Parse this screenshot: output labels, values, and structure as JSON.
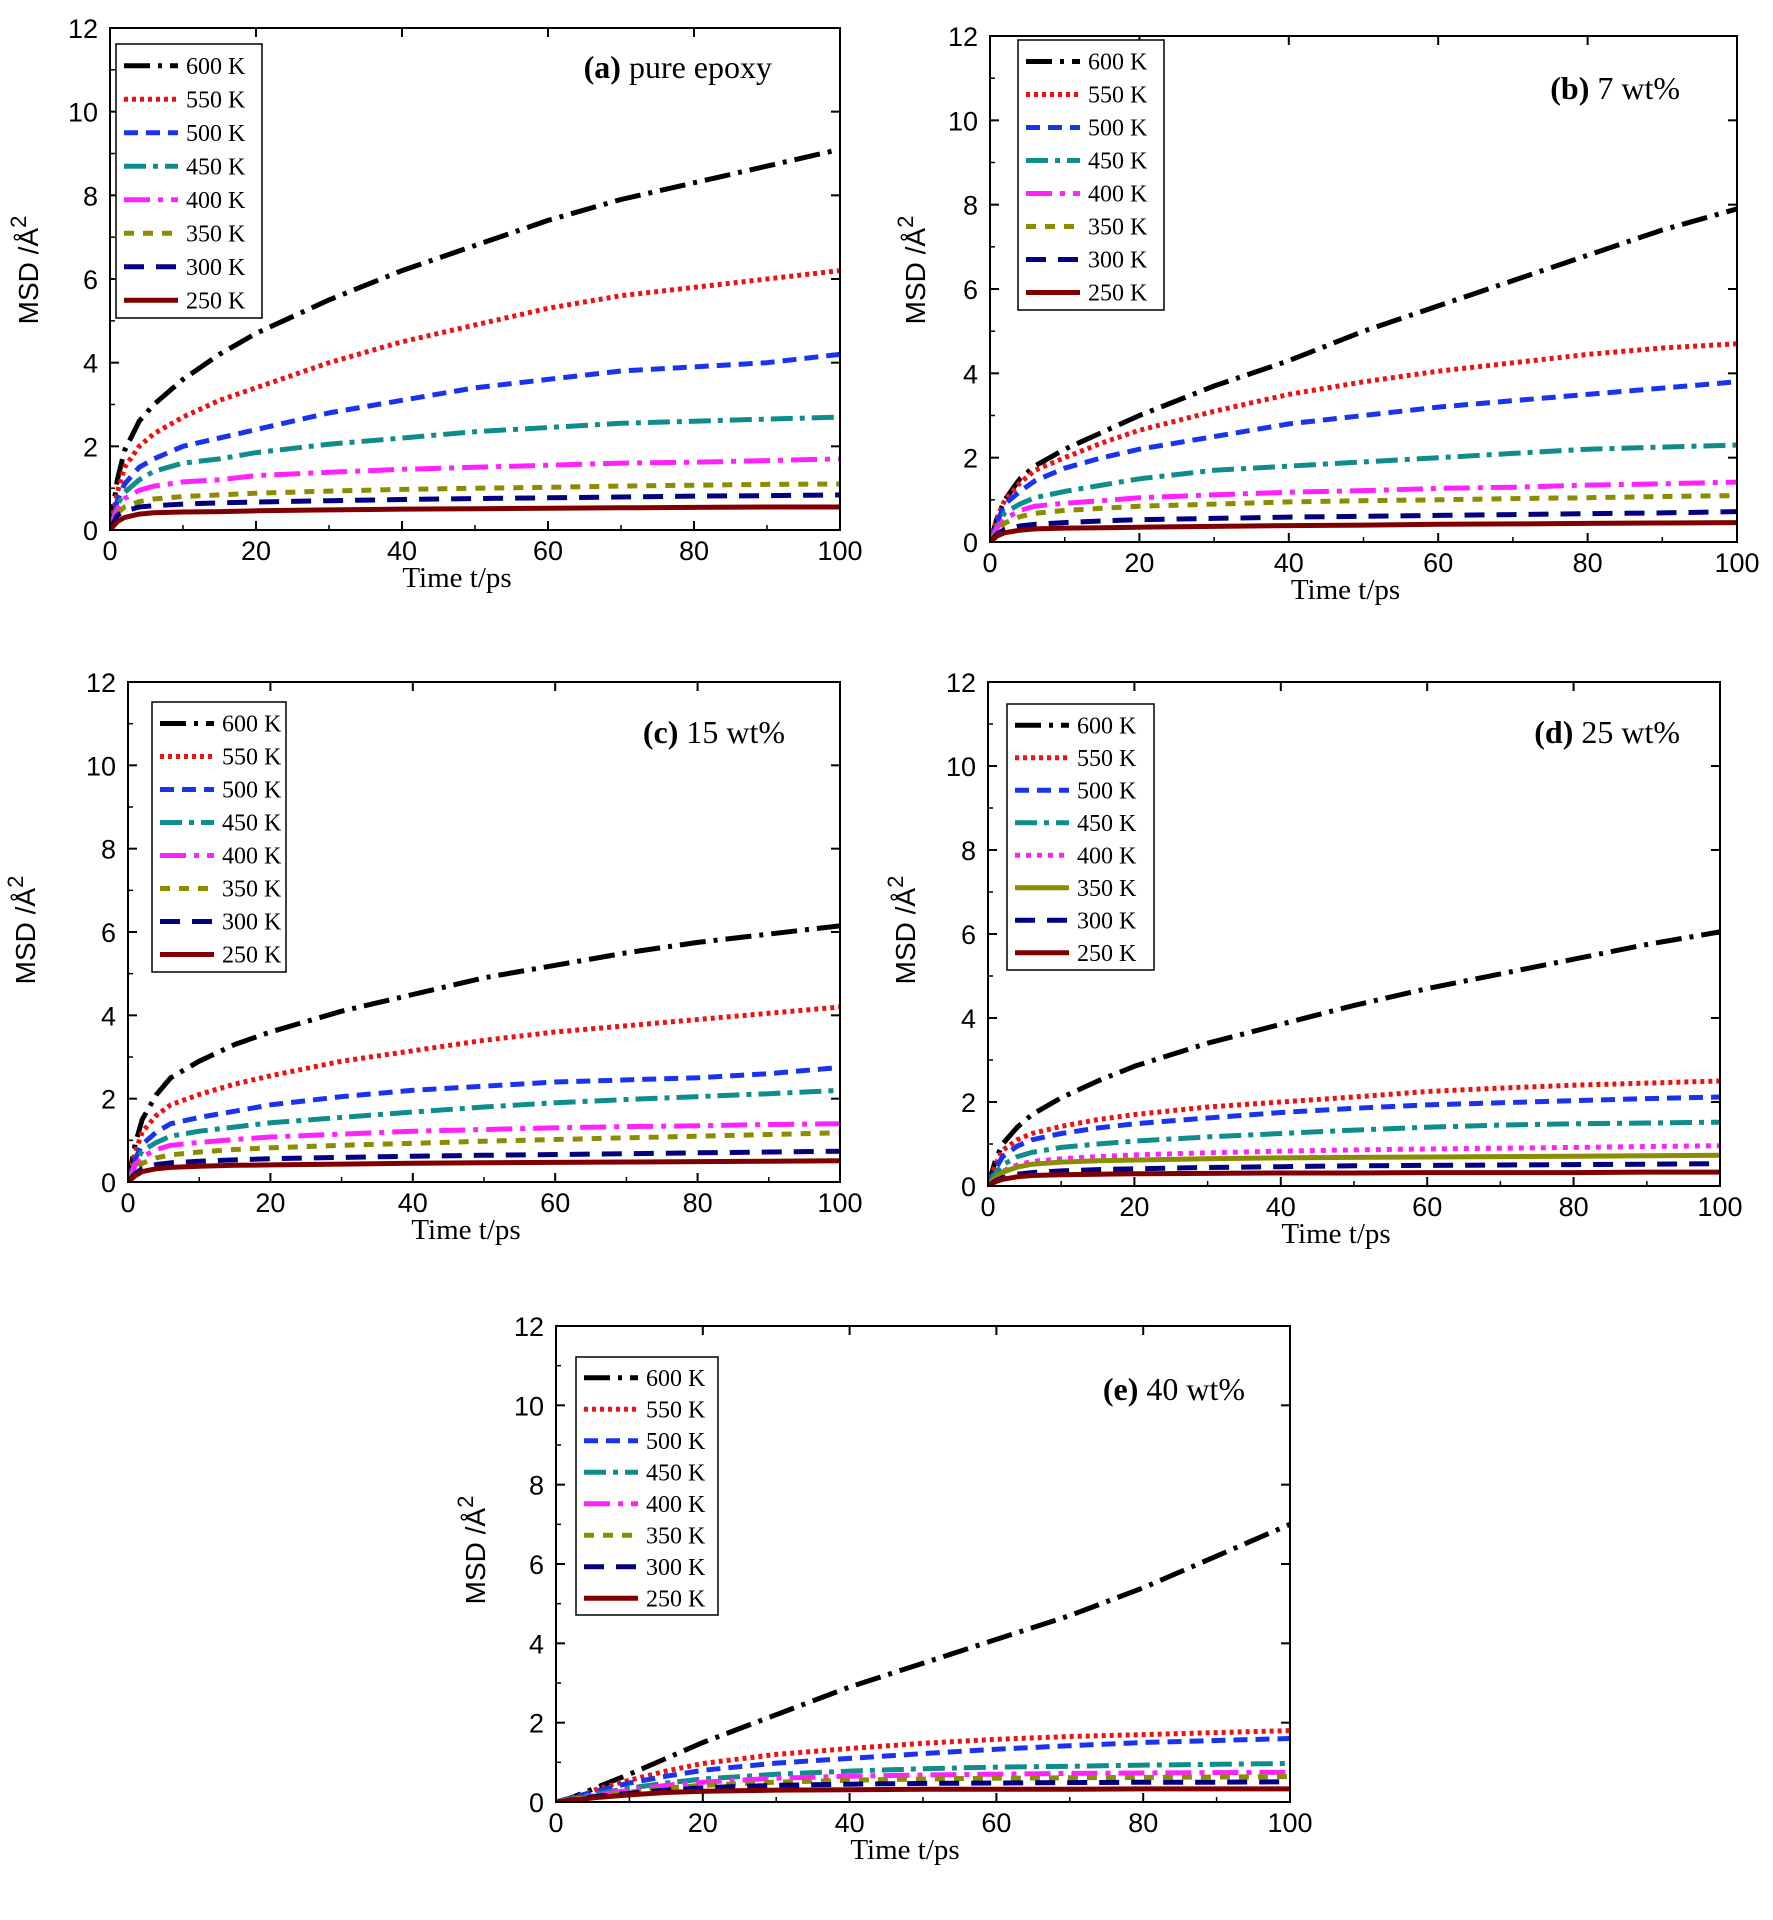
{
  "colors": {
    "600 K": "#000000",
    "550 K": "#ee1111",
    "500 K": "#1a33ee",
    "450 K": "#0f8c8c",
    "400 K": "#ff22ff",
    "350 K": "#8c8c00",
    "300 K": "#000080",
    "250 K": "#800000"
  },
  "chart_data": [
    {
      "type": "line",
      "panel": "(a)",
      "title_bold": "(a)",
      "title_rest": " pure epoxy",
      "xlabel": "Time t/ps",
      "ylabel": "MSD /Å",
      "ylabel_sup": "2",
      "xlim": [
        0,
        100
      ],
      "ylim": [
        0,
        12
      ],
      "xticks": [
        "0",
        "20",
        "40",
        "60",
        "80",
        "100"
      ],
      "yticks": [
        "0",
        "2",
        "4",
        "6",
        "8",
        "10",
        "12"
      ],
      "x": [
        0,
        1,
        2,
        4,
        6,
        10,
        15,
        20,
        30,
        40,
        50,
        60,
        70,
        80,
        90,
        100
      ],
      "series": [
        {
          "name": "600 K",
          "style": "dashdot",
          "values": [
            0,
            1.2,
            1.9,
            2.6,
            3.0,
            3.6,
            4.2,
            4.7,
            5.5,
            6.2,
            6.8,
            7.4,
            7.9,
            8.3,
            8.7,
            9.1
          ]
        },
        {
          "name": "550 K",
          "style": "dot",
          "values": [
            0,
            0.9,
            1.5,
            2.0,
            2.3,
            2.7,
            3.1,
            3.4,
            4.0,
            4.5,
            4.9,
            5.3,
            5.6,
            5.8,
            6.0,
            6.2
          ]
        },
        {
          "name": "500 K",
          "style": "dash",
          "values": [
            0,
            0.7,
            1.1,
            1.5,
            1.7,
            2.0,
            2.2,
            2.4,
            2.8,
            3.1,
            3.4,
            3.6,
            3.8,
            3.9,
            4.0,
            4.2
          ]
        },
        {
          "name": "450 K",
          "style": "dashdot2",
          "values": [
            0,
            0.6,
            0.9,
            1.2,
            1.4,
            1.6,
            1.7,
            1.85,
            2.05,
            2.2,
            2.35,
            2.45,
            2.55,
            2.6,
            2.65,
            2.7
          ]
        },
        {
          "name": "400 K",
          "style": "longdashdot",
          "values": [
            0,
            0.5,
            0.75,
            0.95,
            1.05,
            1.15,
            1.2,
            1.3,
            1.38,
            1.45,
            1.5,
            1.55,
            1.6,
            1.62,
            1.66,
            1.7
          ]
        },
        {
          "name": "350 K",
          "style": "sdash",
          "values": [
            0,
            0.4,
            0.55,
            0.68,
            0.74,
            0.8,
            0.84,
            0.88,
            0.93,
            0.97,
            1.0,
            1.02,
            1.05,
            1.07,
            1.09,
            1.1
          ]
        },
        {
          "name": "300 K",
          "style": "ldash",
          "values": [
            0,
            0.35,
            0.45,
            0.55,
            0.58,
            0.62,
            0.65,
            0.67,
            0.7,
            0.73,
            0.75,
            0.77,
            0.79,
            0.81,
            0.82,
            0.84
          ]
        },
        {
          "name": "250 K",
          "style": "solid",
          "values": [
            0,
            0.2,
            0.3,
            0.38,
            0.41,
            0.43,
            0.44,
            0.46,
            0.48,
            0.5,
            0.51,
            0.52,
            0.53,
            0.54,
            0.55,
            0.55
          ]
        }
      ]
    },
    {
      "type": "line",
      "panel": "(b)",
      "title_bold": "(b)",
      "title_rest": " 7 wt%",
      "xlabel": "Time t/ps",
      "ylabel": "MSD /Å",
      "ylabel_sup": "2",
      "xlim": [
        0,
        100
      ],
      "ylim": [
        0,
        12
      ],
      "xticks": [
        "0",
        "20",
        "40",
        "60",
        "80",
        "100"
      ],
      "yticks": [
        "0",
        "2",
        "4",
        "6",
        "8",
        "10",
        "12"
      ],
      "x": [
        0,
        1,
        2,
        4,
        6,
        10,
        15,
        20,
        30,
        40,
        50,
        60,
        70,
        80,
        90,
        100
      ],
      "series": [
        {
          "name": "600 K",
          "style": "dashdot",
          "values": [
            0,
            0.6,
            1.0,
            1.5,
            1.8,
            2.2,
            2.6,
            3.0,
            3.7,
            4.3,
            5.0,
            5.6,
            6.2,
            6.8,
            7.4,
            7.9
          ]
        },
        {
          "name": "550 K",
          "style": "dot",
          "values": [
            0,
            0.6,
            1.0,
            1.4,
            1.7,
            2.0,
            2.35,
            2.65,
            3.1,
            3.5,
            3.8,
            4.05,
            4.25,
            4.45,
            4.6,
            4.7
          ]
        },
        {
          "name": "500 K",
          "style": "dash",
          "values": [
            0,
            0.5,
            0.9,
            1.2,
            1.45,
            1.75,
            2.0,
            2.2,
            2.5,
            2.8,
            3.0,
            3.2,
            3.35,
            3.5,
            3.65,
            3.8
          ]
        },
        {
          "name": "450 K",
          "style": "dashdot2",
          "values": [
            0,
            0.4,
            0.7,
            0.9,
            1.05,
            1.2,
            1.35,
            1.5,
            1.7,
            1.8,
            1.9,
            2.0,
            2.1,
            2.2,
            2.25,
            2.3
          ]
        },
        {
          "name": "400 K",
          "style": "longdashdot",
          "values": [
            0,
            0.35,
            0.55,
            0.75,
            0.85,
            0.92,
            0.98,
            1.05,
            1.12,
            1.18,
            1.22,
            1.27,
            1.3,
            1.35,
            1.38,
            1.42
          ]
        },
        {
          "name": "350 K",
          "style": "sdash",
          "values": [
            0,
            0.3,
            0.45,
            0.6,
            0.68,
            0.75,
            0.8,
            0.85,
            0.9,
            0.95,
            0.98,
            1.0,
            1.03,
            1.05,
            1.08,
            1.1
          ]
        },
        {
          "name": "300 K",
          "style": "ldash",
          "values": [
            0,
            0.2,
            0.3,
            0.38,
            0.42,
            0.46,
            0.5,
            0.53,
            0.56,
            0.59,
            0.61,
            0.63,
            0.65,
            0.67,
            0.69,
            0.72
          ]
        },
        {
          "name": "250 K",
          "style": "solid",
          "values": [
            0,
            0.15,
            0.22,
            0.28,
            0.31,
            0.33,
            0.34,
            0.35,
            0.37,
            0.39,
            0.4,
            0.42,
            0.43,
            0.44,
            0.45,
            0.46
          ]
        }
      ]
    },
    {
      "type": "line",
      "panel": "(c)",
      "title_bold": "(c)",
      "title_rest": "  15 wt%",
      "xlabel": "Time t/ps",
      "ylabel": "MSD /Å",
      "ylabel_sup": "2",
      "xlim": [
        0,
        100
      ],
      "ylim": [
        0,
        12
      ],
      "xticks": [
        "0",
        "20",
        "40",
        "60",
        "80",
        "100"
      ],
      "yticks": [
        "0",
        "2",
        "4",
        "6",
        "8",
        "10",
        "12"
      ],
      "x": [
        0,
        1,
        2,
        4,
        6,
        10,
        15,
        20,
        30,
        40,
        50,
        60,
        70,
        80,
        90,
        100
      ],
      "series": [
        {
          "name": "600 K",
          "style": "dashdot",
          "values": [
            0,
            0.9,
            1.5,
            2.1,
            2.5,
            2.9,
            3.3,
            3.6,
            4.1,
            4.5,
            4.9,
            5.2,
            5.5,
            5.75,
            5.95,
            6.15
          ]
        },
        {
          "name": "550 K",
          "style": "dot",
          "values": [
            0,
            0.7,
            1.2,
            1.6,
            1.85,
            2.1,
            2.35,
            2.55,
            2.9,
            3.15,
            3.4,
            3.6,
            3.75,
            3.9,
            4.05,
            4.2
          ]
        },
        {
          "name": "500 K",
          "style": "dash",
          "values": [
            0,
            0.55,
            0.9,
            1.2,
            1.4,
            1.55,
            1.7,
            1.85,
            2.05,
            2.2,
            2.3,
            2.4,
            2.45,
            2.5,
            2.6,
            2.75
          ]
        },
        {
          "name": "450 K",
          "style": "dashdot2",
          "values": [
            0,
            0.45,
            0.75,
            0.95,
            1.1,
            1.22,
            1.32,
            1.42,
            1.55,
            1.68,
            1.8,
            1.9,
            1.98,
            2.05,
            2.12,
            2.2
          ]
        },
        {
          "name": "400 K",
          "style": "longdashdot",
          "values": [
            0,
            0.4,
            0.6,
            0.78,
            0.88,
            0.95,
            1.02,
            1.08,
            1.15,
            1.22,
            1.26,
            1.3,
            1.33,
            1.35,
            1.38,
            1.4
          ]
        },
        {
          "name": "350 K",
          "style": "sdash",
          "values": [
            0,
            0.3,
            0.45,
            0.58,
            0.65,
            0.72,
            0.78,
            0.82,
            0.88,
            0.93,
            0.98,
            1.02,
            1.06,
            1.1,
            1.14,
            1.18
          ]
        },
        {
          "name": "300 K",
          "style": "ldash",
          "values": [
            0,
            0.2,
            0.32,
            0.42,
            0.46,
            0.5,
            0.53,
            0.56,
            0.59,
            0.62,
            0.64,
            0.66,
            0.68,
            0.7,
            0.72,
            0.74
          ]
        },
        {
          "name": "250 K",
          "style": "solid",
          "values": [
            0,
            0.15,
            0.25,
            0.32,
            0.35,
            0.38,
            0.4,
            0.41,
            0.43,
            0.45,
            0.46,
            0.47,
            0.48,
            0.49,
            0.5,
            0.51
          ]
        }
      ]
    },
    {
      "type": "line",
      "panel": "(d)",
      "title_bold": "(d)",
      "title_rest": " 25 wt%",
      "xlabel": "Time t/ps",
      "ylabel": "MSD /Å",
      "ylabel_sup": "2",
      "xlim": [
        0,
        100
      ],
      "ylim": [
        0,
        12
      ],
      "xticks": [
        "0",
        "20",
        "40",
        "60",
        "80",
        "100"
      ],
      "yticks": [
        "0",
        "2",
        "4",
        "6",
        "8",
        "10",
        "12"
      ],
      "x": [
        0,
        1,
        2,
        4,
        6,
        10,
        15,
        20,
        30,
        40,
        50,
        60,
        70,
        80,
        90,
        100
      ],
      "series": [
        {
          "name": "600 K",
          "style": "dashdot",
          "values": [
            0,
            0.6,
            1.0,
            1.4,
            1.7,
            2.1,
            2.5,
            2.85,
            3.4,
            3.85,
            4.3,
            4.7,
            5.05,
            5.4,
            5.75,
            6.05
          ]
        },
        {
          "name": "550 K",
          "style": "dot",
          "values": [
            0,
            0.5,
            0.85,
            1.1,
            1.25,
            1.42,
            1.58,
            1.7,
            1.88,
            2.0,
            2.12,
            2.25,
            2.33,
            2.4,
            2.45,
            2.5
          ]
        },
        {
          "name": "500 K",
          "style": "dash",
          "values": [
            0,
            0.4,
            0.7,
            0.95,
            1.1,
            1.25,
            1.38,
            1.48,
            1.62,
            1.75,
            1.85,
            1.93,
            1.98,
            2.03,
            2.08,
            2.12
          ]
        },
        {
          "name": "450 K",
          "style": "dashdot2",
          "values": [
            0,
            0.3,
            0.5,
            0.7,
            0.8,
            0.92,
            1.0,
            1.07,
            1.17,
            1.25,
            1.33,
            1.4,
            1.45,
            1.48,
            1.5,
            1.52
          ]
        },
        {
          "name": "400 K",
          "style": "dot2",
          "values": [
            0,
            0.2,
            0.35,
            0.5,
            0.58,
            0.65,
            0.7,
            0.74,
            0.79,
            0.83,
            0.86,
            0.88,
            0.9,
            0.92,
            0.94,
            0.96
          ]
        },
        {
          "name": "350 K",
          "style": "solid",
          "values": [
            0,
            0.2,
            0.33,
            0.45,
            0.52,
            0.57,
            0.6,
            0.62,
            0.65,
            0.67,
            0.68,
            0.69,
            0.7,
            0.71,
            0.72,
            0.73
          ]
        },
        {
          "name": "300 K",
          "style": "ldash",
          "values": [
            0,
            0.12,
            0.2,
            0.28,
            0.32,
            0.36,
            0.39,
            0.41,
            0.44,
            0.46,
            0.48,
            0.49,
            0.5,
            0.51,
            0.52,
            0.53
          ]
        },
        {
          "name": "250 K",
          "style": "solid",
          "values": [
            0,
            0.1,
            0.16,
            0.22,
            0.25,
            0.27,
            0.28,
            0.29,
            0.3,
            0.31,
            0.31,
            0.32,
            0.32,
            0.32,
            0.33,
            0.33
          ]
        }
      ]
    },
    {
      "type": "line",
      "panel": "(e)",
      "title_bold": "(e)",
      "title_rest": " 40 wt%",
      "xlabel": "Time t/ps",
      "ylabel": "MSD /Å",
      "ylabel_sup": "2",
      "xlim": [
        0,
        100
      ],
      "ylim": [
        0,
        12
      ],
      "xticks": [
        "0",
        "20",
        "40",
        "60",
        "80",
        "100"
      ],
      "yticks": [
        "0",
        "2",
        "4",
        "6",
        "8",
        "10",
        "12"
      ],
      "x": [
        0,
        1,
        2,
        4,
        6,
        10,
        15,
        20,
        30,
        40,
        50,
        60,
        70,
        80,
        90,
        100
      ],
      "series": [
        {
          "name": "600 K",
          "style": "dashdot",
          "values": [
            0,
            0.05,
            0.1,
            0.25,
            0.4,
            0.7,
            1.1,
            1.5,
            2.2,
            2.9,
            3.5,
            4.1,
            4.7,
            5.4,
            6.2,
            7.0
          ]
        },
        {
          "name": "550 K",
          "style": "dot",
          "values": [
            0,
            0.05,
            0.1,
            0.2,
            0.35,
            0.55,
            0.78,
            0.97,
            1.2,
            1.35,
            1.48,
            1.58,
            1.65,
            1.7,
            1.75,
            1.8
          ]
        },
        {
          "name": "500 K",
          "style": "dash",
          "values": [
            0,
            0.05,
            0.1,
            0.2,
            0.3,
            0.48,
            0.65,
            0.8,
            0.98,
            1.1,
            1.22,
            1.33,
            1.42,
            1.5,
            1.55,
            1.6
          ]
        },
        {
          "name": "450 K",
          "style": "dashdot2",
          "values": [
            0,
            0.04,
            0.08,
            0.15,
            0.22,
            0.35,
            0.48,
            0.58,
            0.7,
            0.78,
            0.84,
            0.88,
            0.9,
            0.93,
            0.95,
            0.97
          ]
        },
        {
          "name": "400 K",
          "style": "longdashdot",
          "values": [
            0,
            0.03,
            0.06,
            0.12,
            0.18,
            0.3,
            0.42,
            0.5,
            0.6,
            0.65,
            0.68,
            0.7,
            0.72,
            0.73,
            0.74,
            0.75
          ]
        },
        {
          "name": "350 K",
          "style": "sdash",
          "values": [
            0,
            0.03,
            0.06,
            0.11,
            0.16,
            0.25,
            0.35,
            0.42,
            0.5,
            0.55,
            0.58,
            0.6,
            0.61,
            0.62,
            0.63,
            0.64
          ]
        },
        {
          "name": "300 K",
          "style": "ldash",
          "values": [
            0,
            0.02,
            0.05,
            0.1,
            0.15,
            0.22,
            0.3,
            0.36,
            0.42,
            0.45,
            0.47,
            0.48,
            0.49,
            0.5,
            0.5,
            0.51
          ]
        },
        {
          "name": "250 K",
          "style": "solid",
          "values": [
            0,
            0.02,
            0.04,
            0.08,
            0.12,
            0.18,
            0.24,
            0.27,
            0.3,
            0.31,
            0.32,
            0.32,
            0.32,
            0.33,
            0.33,
            0.33
          ]
        }
      ]
    }
  ]
}
